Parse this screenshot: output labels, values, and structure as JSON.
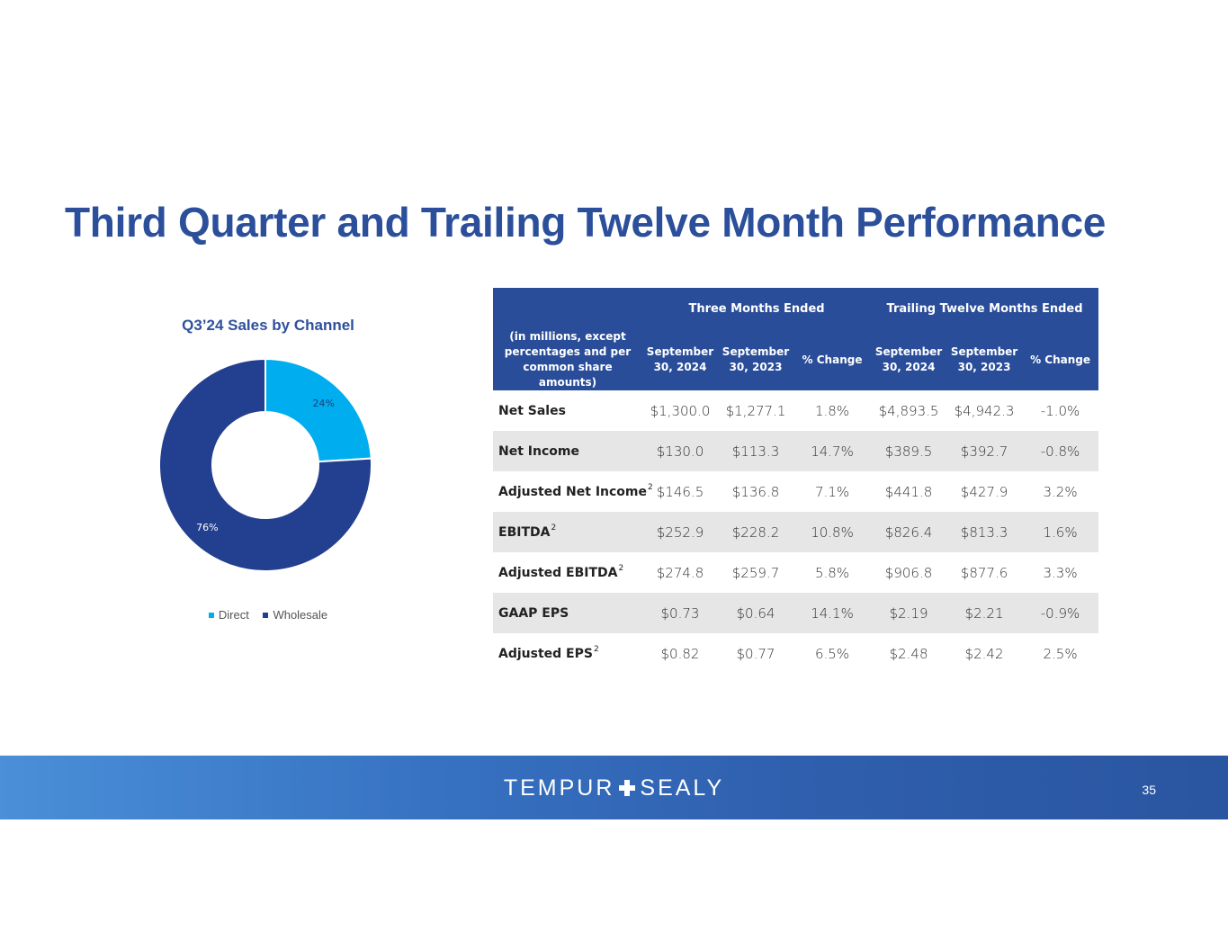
{
  "page_title": "Third Quarter and Trailing Twelve Month Performance",
  "chart_data": {
    "type": "pie",
    "title": "Q3’24 Sales by Channel",
    "labels": [
      "Direct",
      "Wholesale"
    ],
    "values": [
      24,
      76
    ],
    "data_labels": [
      "24%",
      "76%"
    ],
    "colors": [
      "#00aeef",
      "#233f8f"
    ],
    "hole": "donut",
    "legend_position": "bottom"
  },
  "table": {
    "groups": [
      "Three Months Ended",
      "Trailing Twelve Months Ended"
    ],
    "header_left": "(in millions, except percentages and per common share amounts)",
    "columns": [
      "September 30, 2024",
      "September 30, 2023",
      "% Change",
      "September 30, 2024",
      "September 30, 2023",
      "% Change"
    ],
    "rows": [
      {
        "label": "Net Sales",
        "fn": "",
        "values": [
          "$1,300.0",
          "$1,277.1",
          "1.8%",
          "$4,893.5",
          "$4,942.3",
          "-1.0%"
        ]
      },
      {
        "label": "Net Income",
        "fn": "",
        "values": [
          "$130.0",
          "$113.3",
          "14.7%",
          "$389.5",
          "$392.7",
          "-0.8%"
        ]
      },
      {
        "label": "Adjusted Net Income",
        "fn": "2",
        "values": [
          "$146.5",
          "$136.8",
          "7.1%",
          "$441.8",
          "$427.9",
          "3.2%"
        ]
      },
      {
        "label": "EBITDA",
        "fn": "2",
        "values": [
          "$252.9",
          "$228.2",
          "10.8%",
          "$826.4",
          "$813.3",
          "1.6%"
        ]
      },
      {
        "label": "Adjusted EBITDA",
        "fn": "2",
        "values": [
          "$274.8",
          "$259.7",
          "5.8%",
          "$906.8",
          "$877.6",
          "3.3%"
        ]
      },
      {
        "label": "GAAP EPS",
        "fn": "",
        "values": [
          "$0.73",
          "$0.64",
          "14.1%",
          "$2.19",
          "$2.21",
          "-0.9%"
        ]
      },
      {
        "label": "Adjusted EPS",
        "fn": "2",
        "values": [
          "$0.82",
          "$0.77",
          "6.5%",
          "$2.48",
          "$2.42",
          "2.5%"
        ]
      }
    ]
  },
  "footer": {
    "brand_left": "TEMPUR",
    "brand_right": "SEALY",
    "page_number": "35"
  }
}
